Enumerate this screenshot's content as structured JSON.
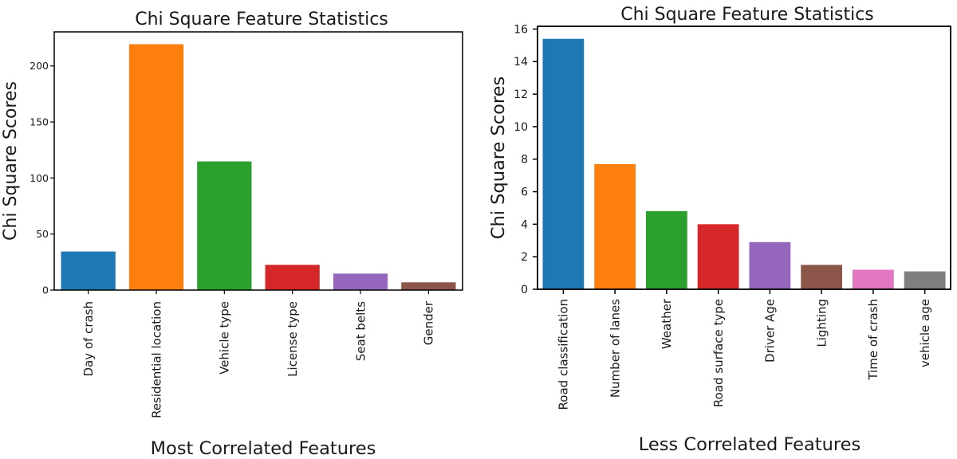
{
  "background": "#ffffff",
  "axis_color": "#000000",
  "text_color": "#1a1a1a",
  "chart_data": [
    {
      "type": "bar",
      "title": "Chi Square Feature Statistics",
      "xlabel": "Most Correlated Features",
      "ylabel": "Chi Square Scores",
      "categories": [
        "Day of crash",
        "Residential location",
        "Vehicle type",
        "License type",
        "Seat belts",
        "Gender"
      ],
      "values": [
        34.4,
        219.4,
        114.8,
        22.5,
        14.7,
        6.9
      ],
      "ylim": [
        0,
        230.4
      ],
      "yticks": [
        0,
        50,
        100,
        150,
        200
      ],
      "bar_colors": [
        "#1f77b4",
        "#ff7f0e",
        "#2ca02c",
        "#d62728",
        "#9467bd",
        "#8c564b"
      ],
      "grid": false,
      "legend": "none"
    },
    {
      "type": "bar",
      "title": "Chi Square Feature Statistics",
      "xlabel": "Less Correlated Features",
      "ylabel": "Chi Square Scores",
      "categories": [
        "Road classification",
        "Number of lanes",
        "Weather",
        "Road surface type",
        "Driver Age",
        "Lighting",
        "Time of crash",
        "vehicle age"
      ],
      "values": [
        15.4,
        7.7,
        4.8,
        4.0,
        2.9,
        1.5,
        1.2,
        1.1
      ],
      "ylim": [
        0,
        16.17
      ],
      "yticks": [
        0,
        2,
        4,
        6,
        8,
        10,
        12,
        14,
        16
      ],
      "bar_colors": [
        "#1f77b4",
        "#ff7f0e",
        "#2ca02c",
        "#d62728",
        "#9467bd",
        "#8c564b",
        "#e377c2",
        "#7f7f7f"
      ],
      "grid": false,
      "legend": "none"
    }
  ]
}
